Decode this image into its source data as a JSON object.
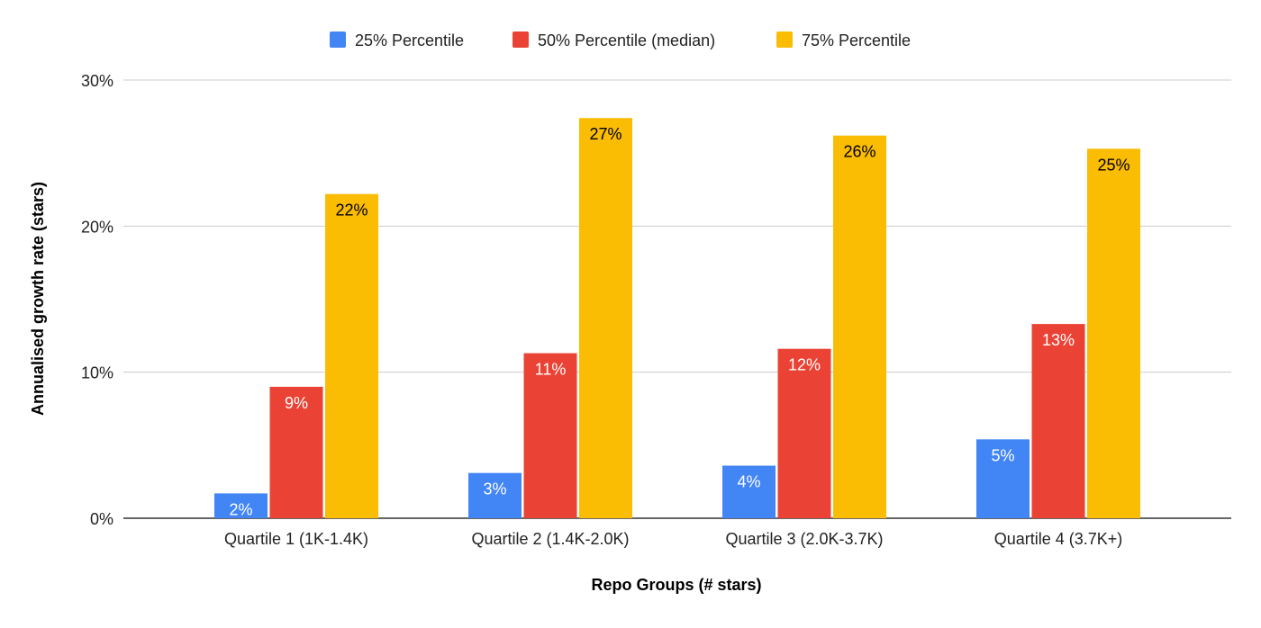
{
  "chart_data": {
    "type": "bar",
    "title": "",
    "xlabel": "Repo Groups (# stars)",
    "ylabel": "Annualised growth rate (stars)",
    "ylim": [
      0,
      30
    ],
    "yticks": [
      "0%",
      "10%",
      "20%",
      "30%"
    ],
    "ytick_values": [
      0,
      10,
      20,
      30
    ],
    "grid": true,
    "legend_position": "top",
    "categories": [
      "Quartile 1 (1K-1.4K)",
      "Quartile 2 (1.4K-2.0K)",
      "Quartile 3 (2.0K-3.7K)",
      "Quartile 4 (3.7K+)"
    ],
    "series": [
      {
        "name": "25% Percentile",
        "color": "#4285F4",
        "values": [
          1.7,
          3.1,
          3.6,
          5.4
        ],
        "labels": [
          "2%",
          "3%",
          "4%",
          "5%"
        ]
      },
      {
        "name": "50% Percentile (median)",
        "color": "#EA4335",
        "values": [
          9.0,
          11.3,
          11.6,
          13.3
        ],
        "labels": [
          "9%",
          "11%",
          "12%",
          "13%"
        ]
      },
      {
        "name": "75% Percentile",
        "color": "#FBBC04",
        "values": [
          22.2,
          27.4,
          26.2,
          25.3
        ],
        "labels": [
          "22%",
          "27%",
          "26%",
          "25%"
        ]
      }
    ]
  }
}
